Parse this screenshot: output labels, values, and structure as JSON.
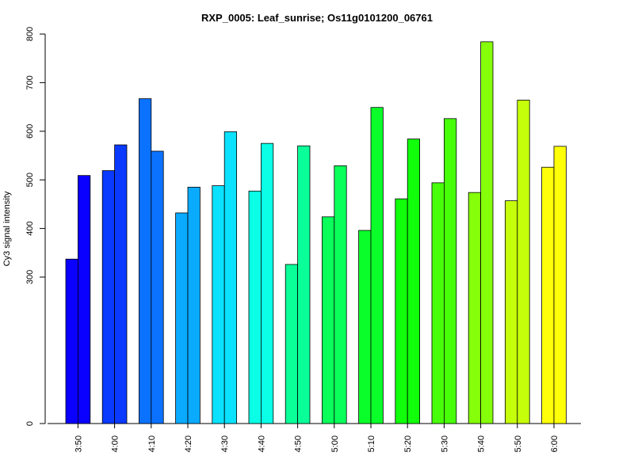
{
  "chart_data": {
    "type": "bar",
    "title": "RXP_0005: Leaf_sunrise; Os11g0101200_06761",
    "xlabel": "",
    "ylabel": "Cy3 signal intensity",
    "categories": [
      "3:50",
      "4:00",
      "4:10",
      "4:20",
      "4:30",
      "4:40",
      "4:50",
      "5:00",
      "5:10",
      "5:20",
      "5:30",
      "5:40",
      "5:50",
      "6:00"
    ],
    "series": [
      {
        "values": [
          337,
          519,
          667,
          432,
          488,
          477,
          326,
          424,
          396,
          461,
          494,
          474,
          457,
          526
        ]
      },
      {
        "values": [
          509,
          572,
          559,
          485,
          599,
          575,
          570,
          529,
          649,
          584,
          626,
          784,
          664,
          569
        ]
      }
    ],
    "colors": [
      "#0a00ff",
      "#0a39ff",
      "#0a72ff",
      "#0aaaff",
      "#0ae2ff",
      "#0affe6",
      "#0aff99",
      "#0aff5a",
      "#0aff2a",
      "#11ff0a",
      "#48ff0a",
      "#86ff0a",
      "#c6ff0a",
      "#ffff0a"
    ],
    "yaxis": {
      "ticks": [
        0,
        300,
        400,
        500,
        600,
        700,
        800
      ],
      "axis_break": "values below 300 are compressed"
    },
    "grid": false,
    "legend": "none"
  }
}
